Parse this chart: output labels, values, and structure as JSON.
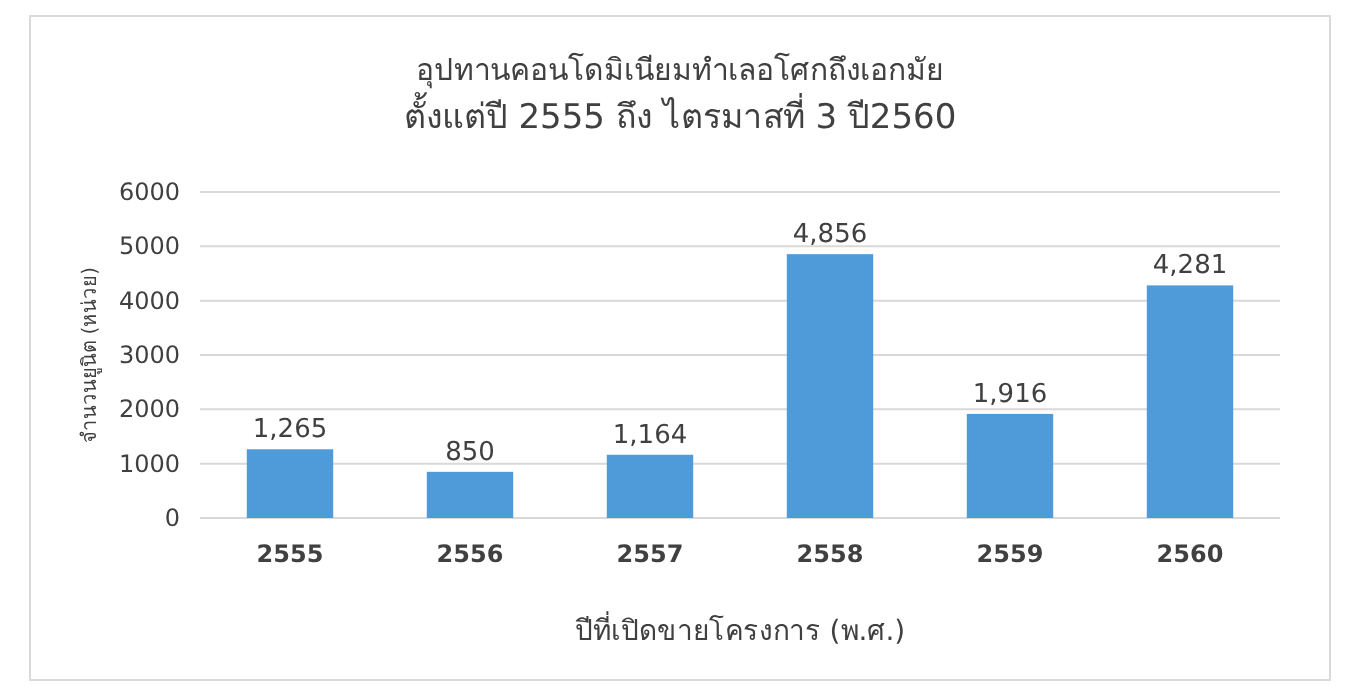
{
  "chart_data": {
    "type": "bar",
    "title": "อุปทานคอนโดมิเนียมทำเลอโศกถึงเอกมัย",
    "subtitle": "ตั้งแต่ปี 2555 ถึง ไตรมาสที่ 3 ปี2560",
    "xlabel": "ปีที่เปิดขายโครงการ (พ.ศ.)",
    "ylabel": "จำนวนยูนิต (หน่วย)",
    "categories": [
      "2555",
      "2556",
      "2557",
      "2558",
      "2559",
      "2560"
    ],
    "values": [
      1265,
      850,
      1164,
      4856,
      1916,
      4281
    ],
    "value_labels": [
      "1,265",
      "850",
      "1,164",
      "4,856",
      "1,916",
      "4,281"
    ],
    "color": "#4f9bd9",
    "ylim": [
      0,
      6000
    ],
    "yticks": [
      0,
      1000,
      2000,
      3000,
      4000,
      5000,
      6000
    ],
    "grid": "y"
  }
}
